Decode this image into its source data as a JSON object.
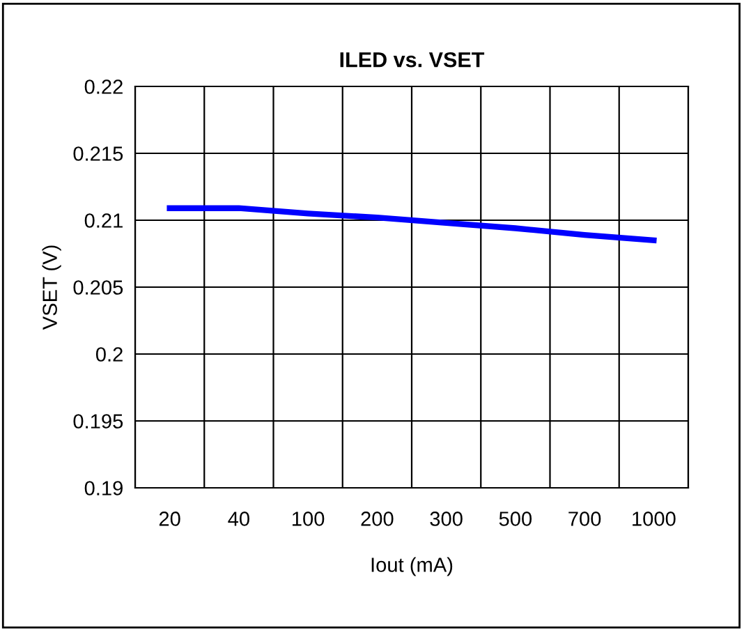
{
  "chart_data": {
    "type": "line",
    "title": "ILED vs. VSET",
    "xlabel": "Iout (mA)",
    "ylabel": "VSET (V)",
    "categories": [
      "20",
      "40",
      "100",
      "200",
      "300",
      "500",
      "700",
      "1000"
    ],
    "series": [
      {
        "color": "#0000ff",
        "values": [
          0.2109,
          0.2109,
          0.2105,
          0.2102,
          0.2098,
          0.2094,
          0.2089,
          0.2085
        ]
      }
    ],
    "ylim": [
      0.19,
      0.22
    ],
    "yticks": [
      0.19,
      0.195,
      0.2,
      0.205,
      0.21,
      0.215,
      0.22
    ],
    "grid": true,
    "legend": false,
    "marker": "none",
    "line_style": "solid"
  }
}
